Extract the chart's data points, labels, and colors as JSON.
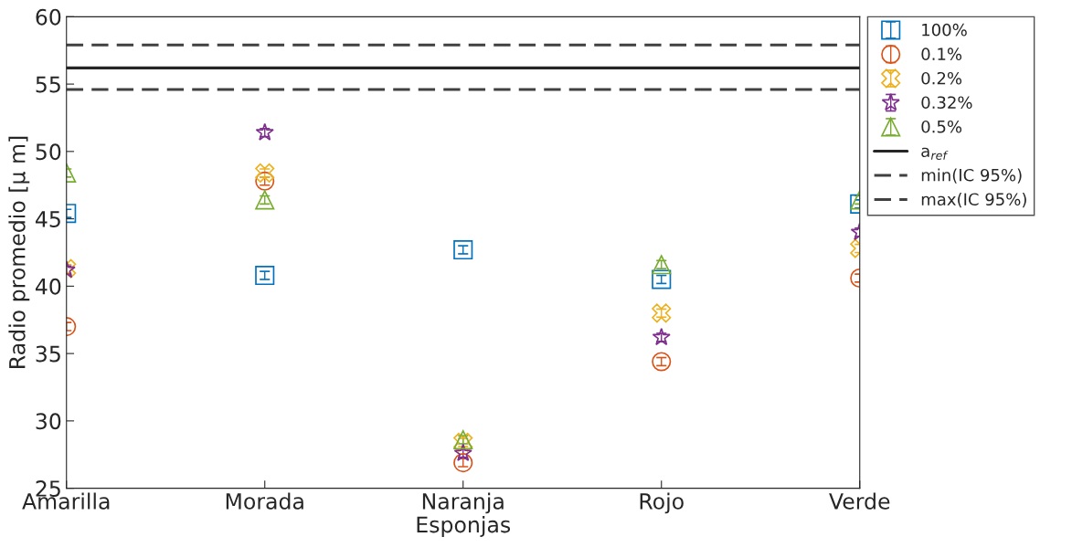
{
  "chart_data": {
    "type": "scatter",
    "xlabel": "Esponjas",
    "ylabel": "Radio promedio [μ m]",
    "categories": [
      "Amarilla",
      "Morada",
      "Naranja",
      "Rojo",
      "Verde"
    ],
    "series": [
      {
        "name": "100%",
        "color": "#0072bd",
        "marker": "square",
        "values": [
          45.4,
          40.8,
          42.7,
          40.5,
          46.1
        ],
        "errors": [
          0.3,
          0.3,
          0.3,
          0.3,
          0.3
        ]
      },
      {
        "name": "0.1%",
        "color": "#d95319",
        "marker": "circle",
        "values": [
          37.0,
          47.8,
          26.9,
          34.4,
          40.6
        ],
        "errors": [
          0.3,
          0.3,
          0.3,
          0.3,
          0.3
        ]
      },
      {
        "name": "0.2%",
        "color": "#edb120",
        "marker": "cross",
        "values": [
          41.3,
          48.4,
          28.4,
          38.0,
          42.8
        ],
        "errors": [
          0.3,
          0.3,
          0.3,
          0.3,
          0.3
        ]
      },
      {
        "name": "0.32%",
        "color": "#7e2f8e",
        "marker": "star",
        "values": [
          41.2,
          51.4,
          27.6,
          36.2,
          44.0
        ],
        "errors": [
          0.3,
          0.3,
          0.3,
          0.3,
          0.3
        ]
      },
      {
        "name": "0.5%",
        "color": "#77ac30",
        "marker": "triangle",
        "values": [
          48.4,
          46.4,
          28.6,
          41.6,
          46.4
        ],
        "errors": [
          0.3,
          0.3,
          0.3,
          0.3,
          0.3
        ]
      }
    ],
    "ref_lines": [
      {
        "axis": "y",
        "value": 56.2,
        "label": "a$_{ref}$",
        "color": "#262626",
        "line_style": "solid"
      },
      {
        "axis": "y",
        "value": 54.6,
        "label": "min(IC 95%)",
        "color": "#404040",
        "line_style": "dashed"
      },
      {
        "axis": "y",
        "value": 57.9,
        "label": "max(IC 95%)",
        "color": "#404040",
        "line_style": "dashed"
      }
    ],
    "ylim": [
      25,
      60
    ],
    "yticks": [
      25,
      30,
      35,
      40,
      45,
      50,
      55,
      60
    ],
    "grid": false,
    "legend": "top right"
  }
}
